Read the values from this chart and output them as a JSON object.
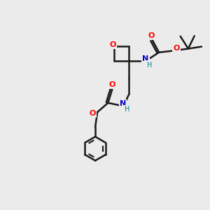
{
  "bg_color": "#ebebeb",
  "bond_color": "#1a1a1a",
  "O_color": "#ff0000",
  "N_color": "#0000cc",
  "H_color": "#008080",
  "bond_width": 1.8,
  "fig_w": 3.0,
  "fig_h": 3.0,
  "dpi": 100,
  "xlim": [
    0,
    10
  ],
  "ylim": [
    0,
    10
  ]
}
